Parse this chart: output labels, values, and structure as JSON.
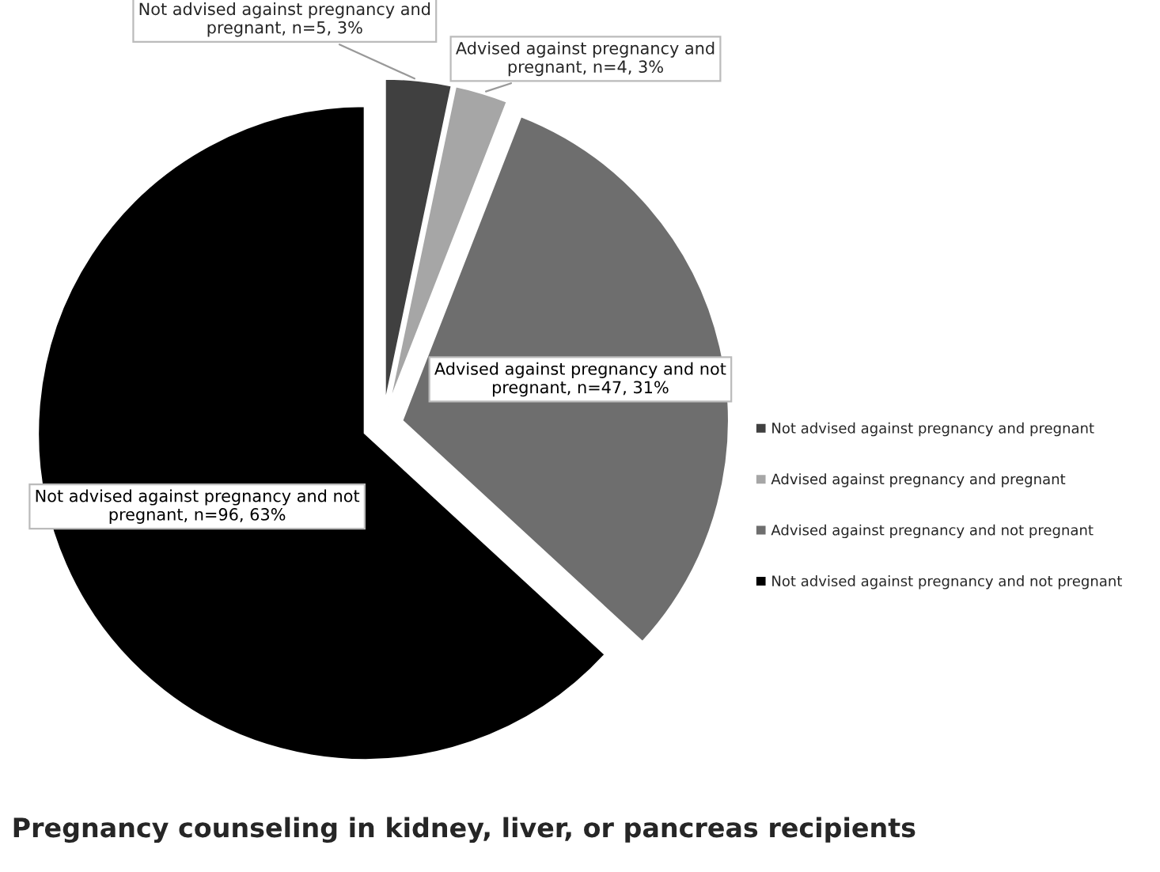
{
  "chart_data": {
    "type": "pie",
    "title": "Pregnancy counseling in kidney, liver, or pancreas recipients",
    "categories": [
      "Not advised against pregnancy and pregnant",
      "Advised against pregnancy and pregnant",
      "Advised against pregnancy and not pregnant",
      "Not advised against pregnancy and not pregnant"
    ],
    "values": [
      5,
      4,
      47,
      96
    ],
    "colors": [
      "#404040",
      "#a6a6a6",
      "#6e6e6e",
      "#000000"
    ],
    "value_labels": [
      "Not advised against pregnancy and pregnant, n=5, 3%",
      "Advised against pregnancy and pregnant, n=4, 3%",
      "Advised against pregnancy and not pregnant, n=47, 31%",
      "Not advised against pregnancy and not pregnant, n=96, 63%"
    ],
    "legend": "right"
  }
}
